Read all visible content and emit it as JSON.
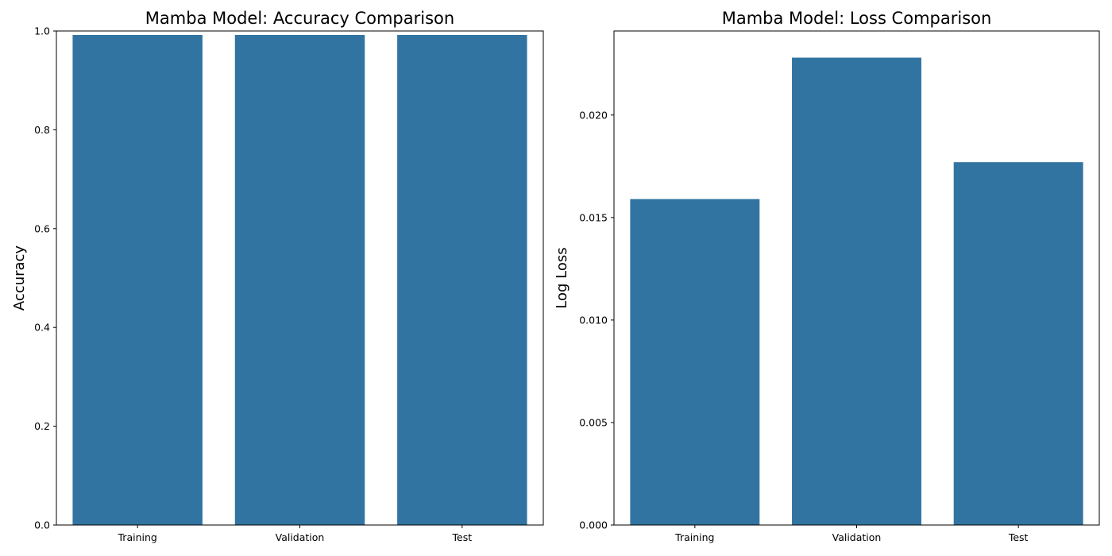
{
  "chart_data": [
    {
      "type": "bar",
      "title": "Mamba Model: Accuracy Comparison",
      "xlabel": "",
      "ylabel": "Accuracy",
      "categories": [
        "Training",
        "Validation",
        "Test"
      ],
      "values": [
        0.992,
        0.992,
        0.992
      ],
      "ylim": [
        0,
        1
      ],
      "yticks": [
        "0.0",
        "0.2",
        "0.4",
        "0.6",
        "0.8",
        "1.0"
      ],
      "color": "#3274a1",
      "grid": false
    },
    {
      "type": "bar",
      "title": "Mamba Model: Loss Comparison",
      "xlabel": "",
      "ylabel": "Log Loss",
      "categories": [
        "Training",
        "Validation",
        "Test"
      ],
      "values": [
        0.0159,
        0.0228,
        0.0177
      ],
      "ylim": [
        0,
        0.0241
      ],
      "yticks": [
        "0.000",
        "0.005",
        "0.010",
        "0.015",
        "0.020"
      ],
      "color": "#3274a1",
      "grid": false
    }
  ]
}
